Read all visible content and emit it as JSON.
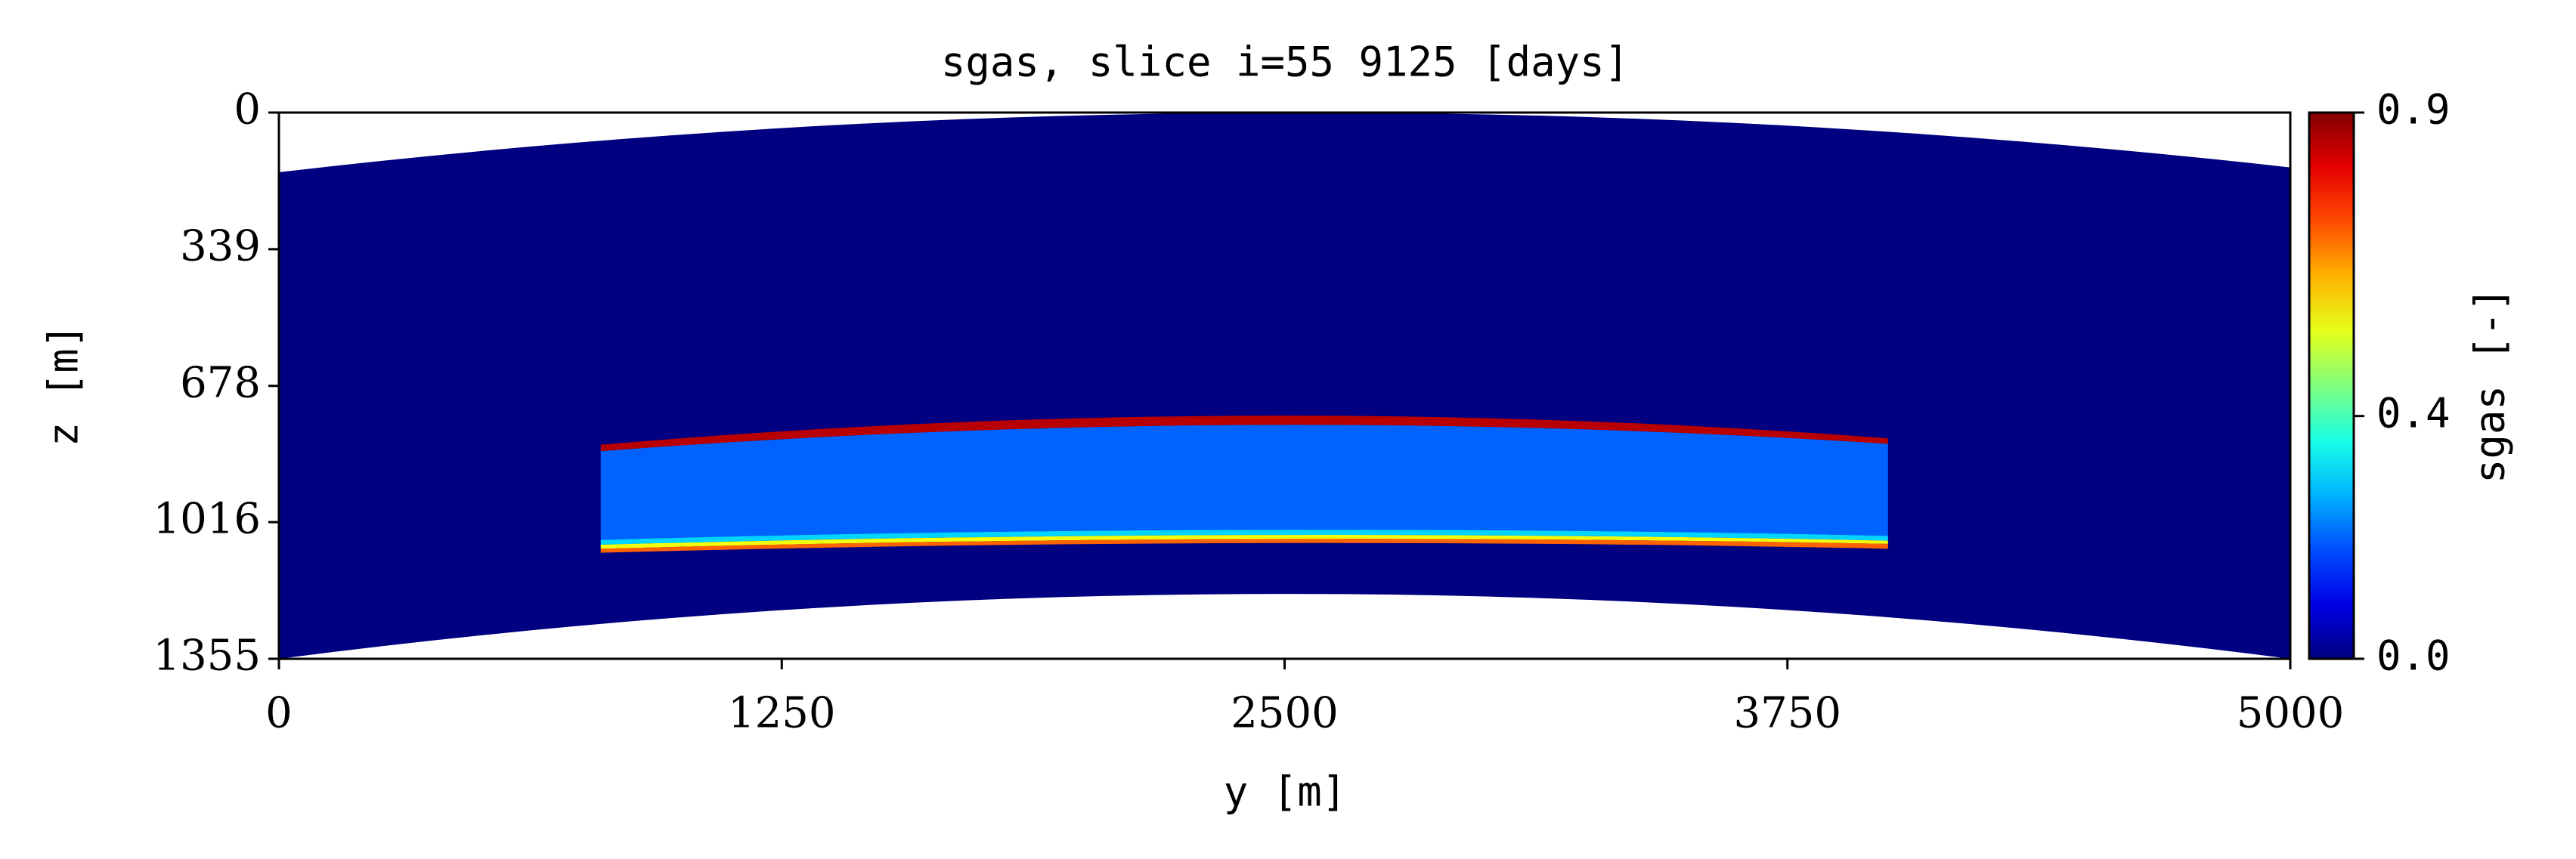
{
  "chart_data": {
    "type": "heatmap",
    "title": "sgas, slice i=55 9125 [days]",
    "xlabel": "y [m]",
    "ylabel": "z [m]",
    "colorbar_label": "sgas [-]",
    "xlim": [
      0,
      5000
    ],
    "xticks": [
      0,
      1250,
      2500,
      3750,
      5000
    ],
    "ylim": [
      0,
      1355
    ],
    "yticks": [
      0,
      339,
      678,
      1016,
      1355
    ],
    "y_inverted": true,
    "colormap": "jet",
    "clim": [
      0,
      0.9
    ],
    "cticks": [
      {
        "value": 0,
        "label": "0.0"
      },
      {
        "value": 0.4,
        "label": "0.4"
      },
      {
        "value": 0.9,
        "label": "0.9"
      }
    ],
    "domain": {
      "y": [
        0,
        2500,
        5000
      ],
      "z_top": [
        148,
        0,
        136
      ],
      "z_bottom": [
        1355,
        1194,
        1355
      ],
      "value": 0
    },
    "plume": {
      "y": [
        800,
        2400,
        4000
      ],
      "layers": [
        {
          "value": 0.85,
          "z_top": [
            824,
            752,
            808
          ],
          "z_bottom": [
            840,
            775,
            822
          ]
        },
        {
          "value": 0.2,
          "z_top": [
            840,
            775,
            822
          ],
          "z_bottom": [
            1060,
            1035,
            1050
          ]
        },
        {
          "value": 0.3,
          "z_top": [
            1060,
            1035,
            1050
          ],
          "z_bottom": [
            1072,
            1048,
            1062
          ]
        },
        {
          "value": 0.55,
          "z_top": [
            1072,
            1048,
            1062
          ],
          "z_bottom": [
            1082,
            1058,
            1070
          ]
        },
        {
          "value": 0.7,
          "z_top": [
            1082,
            1058,
            1070
          ],
          "z_bottom": [
            1092,
            1068,
            1082
          ]
        }
      ]
    }
  }
}
